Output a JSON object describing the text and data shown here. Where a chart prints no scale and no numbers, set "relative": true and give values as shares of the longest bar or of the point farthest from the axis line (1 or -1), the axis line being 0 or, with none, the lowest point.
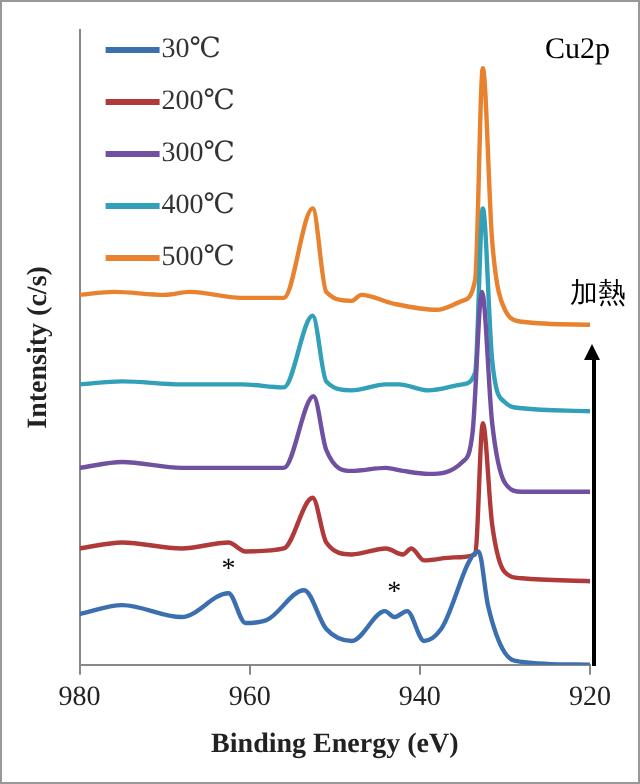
{
  "chart_data": {
    "type": "line",
    "relative": true,
    "xlabel": "Binding Energy (eV)",
    "ylabel": "Intensity (c/s)",
    "xlim": [
      980,
      920
    ],
    "xticks": [
      980,
      960,
      940,
      920
    ],
    "grid": false,
    "legend": "top left",
    "marker": "none",
    "line_style": "solid",
    "annotations": [
      "Cu2p",
      "加熱",
      {
        "text": "*",
        "x": 962.5,
        "y": 0.12
      },
      {
        "text": "*",
        "x": 943,
        "y": 0.08
      }
    ],
    "series": [
      {
        "name": "30℃",
        "color": "#3c6fb0",
        "x": [
          980,
          975,
          968,
          962.5,
          960.5,
          958,
          953.6,
          951,
          948,
          944.1,
          943,
          941.5,
          939.5,
          937.5,
          933.1,
          932,
          930,
          928,
          920
        ],
        "values": [
          0.085,
          0.1,
          0.08,
          0.12,
          0.07,
          0.075,
          0.125,
          0.06,
          0.04,
          0.09,
          0.08,
          0.09,
          0.04,
          0.06,
          0.19,
          0.1,
          0.02,
          0.005,
          0
        ]
      },
      {
        "name": "200℃",
        "color": "#b03a3a",
        "x": [
          980,
          975,
          968,
          962.5,
          960.5,
          956,
          952.6,
          951,
          948,
          944,
          942,
          941,
          939.5,
          936,
          933.5,
          932.6,
          931.5,
          930,
          928,
          920
        ],
        "values": [
          0.195,
          0.205,
          0.195,
          0.205,
          0.19,
          0.195,
          0.28,
          0.205,
          0.185,
          0.195,
          0.185,
          0.195,
          0.175,
          0.18,
          0.185,
          0.405,
          0.235,
          0.155,
          0.145,
          0.14
        ]
      },
      {
        "name": "300℃",
        "color": "#7050a0",
        "x": [
          980,
          975,
          968,
          961,
          956,
          952.5,
          951,
          948,
          944,
          942,
          939,
          935,
          933.8,
          932.7,
          931.5,
          930,
          928,
          920
        ],
        "values": [
          0.33,
          0.34,
          0.33,
          0.33,
          0.33,
          0.45,
          0.36,
          0.325,
          0.33,
          0.325,
          0.32,
          0.34,
          0.39,
          0.625,
          0.405,
          0.305,
          0.29,
          0.29
        ]
      },
      {
        "name": "400℃",
        "color": "#31a0b8",
        "x": [
          980,
          975,
          968,
          961,
          956,
          952.6,
          951,
          948,
          944,
          942.5,
          939,
          935,
          933.5,
          932.6,
          931.5,
          930,
          928,
          920
        ],
        "values": [
          0.47,
          0.475,
          0.47,
          0.47,
          0.465,
          0.585,
          0.475,
          0.46,
          0.47,
          0.47,
          0.46,
          0.47,
          0.49,
          0.765,
          0.51,
          0.44,
          0.43,
          0.425
        ]
      },
      {
        "name": "500℃",
        "color": "#e8822f",
        "x": [
          980,
          976,
          970,
          967,
          961,
          956,
          952.6,
          951,
          948,
          946.9,
          943,
          938,
          935,
          933.5,
          932.6,
          931.5,
          930,
          928,
          920
        ],
        "values": [
          0.62,
          0.625,
          0.62,
          0.625,
          0.615,
          0.615,
          0.765,
          0.625,
          0.61,
          0.62,
          0.605,
          0.595,
          0.61,
          0.645,
          1,
          0.71,
          0.595,
          0.575,
          0.57
        ]
      }
    ]
  }
}
